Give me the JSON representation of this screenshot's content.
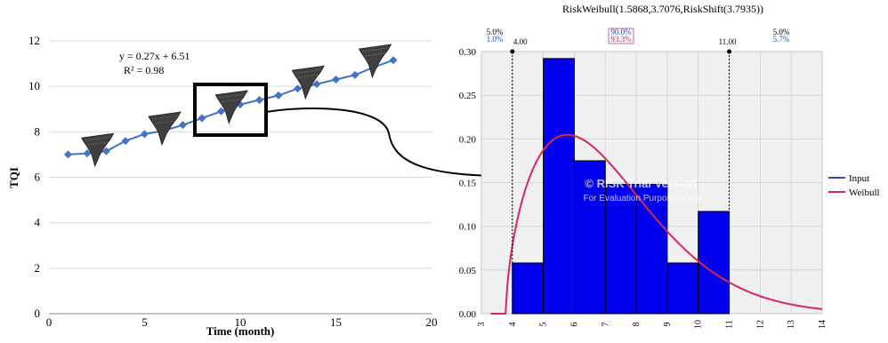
{
  "chart_data": [
    {
      "type": "line",
      "xlabel": "Time (month)",
      "ylabel": "TQI",
      "xlim": [
        0,
        20
      ],
      "ylim": [
        0,
        12
      ],
      "xticks": [
        "0",
        "5",
        "10",
        "15",
        "20"
      ],
      "yticks": [
        "0",
        "2",
        "4",
        "6",
        "8",
        "10",
        "12"
      ],
      "grid": "horizontal",
      "equation": "y = 0.27x + 6.51",
      "r_squared": "R² = 0.98",
      "series": [
        {
          "marker": "diamond",
          "color": "#4472c4",
          "x": [
            1,
            2,
            3,
            4,
            5,
            6,
            7,
            8,
            9,
            10,
            11,
            12,
            13,
            14,
            15,
            16,
            17,
            18
          ],
          "y": [
            7.0,
            7.05,
            7.15,
            7.6,
            7.9,
            8.05,
            8.3,
            8.6,
            8.9,
            9.2,
            9.4,
            9.6,
            9.9,
            10.1,
            10.3,
            10.5,
            10.85,
            11.15
          ]
        }
      ],
      "trend_icons_at_x": [
        2.5,
        6,
        9.5,
        13.5,
        17
      ]
    },
    {
      "type": "bar",
      "title": "RiskWeibull(1.5868,3.7076,RiskShift(3.7935))",
      "xlim": [
        3,
        14
      ],
      "ylim": [
        0,
        0.3
      ],
      "xticks": [
        "3",
        "4",
        "5",
        "6",
        "7",
        "8",
        "9",
        "10",
        "11",
        "12",
        "13",
        "14"
      ],
      "yticks": [
        "0.00",
        "0.05",
        "0.10",
        "0.15",
        "0.20",
        "0.25",
        "0.30"
      ],
      "bins": [
        {
          "from": 4,
          "to": 5,
          "value": 0.058
        },
        {
          "from": 5,
          "to": 6,
          "value": 0.292
        },
        {
          "from": 6,
          "to": 7,
          "value": 0.175
        },
        {
          "from": 7,
          "to": 8,
          "value": 0.148
        },
        {
          "from": 8,
          "to": 9,
          "value": 0.148
        },
        {
          "from": 9,
          "to": 10,
          "value": 0.058
        },
        {
          "from": 10,
          "to": 11,
          "value": 0.117
        }
      ],
      "weibull": {
        "shape": 1.5868,
        "scale": 3.7076,
        "shift": 3.7935
      },
      "markers": [
        {
          "x": 4.0,
          "label": "4.00"
        },
        {
          "x": 11.0,
          "label": "11.00"
        }
      ],
      "left_pct": [
        "5.0%",
        "1.0%"
      ],
      "mid_pct": [
        "90.0%",
        "93.3%"
      ],
      "right_pct": [
        "5.0%",
        "5.7%"
      ],
      "legend": [
        {
          "name": "Input",
          "color": "#3344cc"
        },
        {
          "name": "Weibull",
          "color": "#d42a52"
        }
      ],
      "watermark": [
        "© RISK Trial Version",
        "For Evaluation Purposes Only"
      ],
      "colors": {
        "bar": "#0000ee",
        "plot_bg": "#f0f0f0"
      }
    }
  ]
}
